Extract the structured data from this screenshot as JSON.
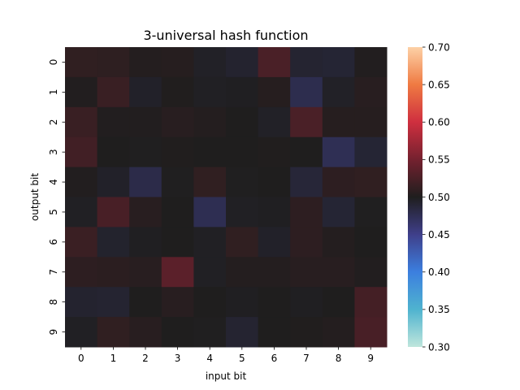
{
  "chart_data": {
    "type": "heatmap",
    "title": "3-universal hash function",
    "xlabel": "input bit",
    "ylabel": "output bit",
    "x_categories": [
      "0",
      "1",
      "2",
      "3",
      "4",
      "5",
      "6",
      "7",
      "8",
      "9"
    ],
    "y_categories": [
      "0",
      "1",
      "2",
      "3",
      "4",
      "5",
      "6",
      "7",
      "8",
      "9"
    ],
    "values": [
      [
        0.51,
        0.509,
        0.503,
        0.504,
        0.496,
        0.492,
        0.525,
        0.491,
        0.49,
        0.502
      ],
      [
        0.502,
        0.515,
        0.495,
        0.501,
        0.497,
        0.498,
        0.504,
        0.478,
        0.496,
        0.505
      ],
      [
        0.515,
        0.502,
        0.502,
        0.505,
        0.503,
        0.5,
        0.496,
        0.525,
        0.504,
        0.504
      ],
      [
        0.52,
        0.5,
        0.499,
        0.501,
        0.5,
        0.5,
        0.501,
        0.5,
        0.475,
        0.49
      ],
      [
        0.502,
        0.495,
        0.48,
        0.499,
        0.51,
        0.499,
        0.5,
        0.488,
        0.508,
        0.51
      ],
      [
        0.497,
        0.524,
        0.505,
        0.5,
        0.476,
        0.497,
        0.498,
        0.508,
        0.49,
        0.499
      ],
      [
        0.516,
        0.493,
        0.498,
        0.5,
        0.497,
        0.51,
        0.495,
        0.508,
        0.503,
        0.5
      ],
      [
        0.508,
        0.507,
        0.505,
        0.535,
        0.497,
        0.503,
        0.503,
        0.505,
        0.505,
        0.502
      ],
      [
        0.492,
        0.491,
        0.5,
        0.505,
        0.5,
        0.498,
        0.5,
        0.498,
        0.5,
        0.522
      ],
      [
        0.497,
        0.51,
        0.505,
        0.5,
        0.499,
        0.491,
        0.5,
        0.501,
        0.503,
        0.524
      ]
    ],
    "vmin": 0.3,
    "vmax": 0.7,
    "colormap": "icefire",
    "colorbar_ticks": [
      "0.30",
      "0.35",
      "0.40",
      "0.45",
      "0.50",
      "0.55",
      "0.60",
      "0.65",
      "0.70"
    ],
    "colorbar_stops": [
      {
        "value": 0.3,
        "color": "#bfe6dc"
      },
      {
        "value": 0.35,
        "color": "#4fb3cf"
      },
      {
        "value": 0.4,
        "color": "#3c7fdf"
      },
      {
        "value": 0.45,
        "color": "#3f3f8a"
      },
      {
        "value": 0.5,
        "color": "#1f1e1e"
      },
      {
        "value": 0.55,
        "color": "#74212f"
      },
      {
        "value": 0.6,
        "color": "#cf2f3f"
      },
      {
        "value": 0.65,
        "color": "#ef7a42"
      },
      {
        "value": 0.7,
        "color": "#fdd1a6"
      }
    ],
    "grid": false
  }
}
